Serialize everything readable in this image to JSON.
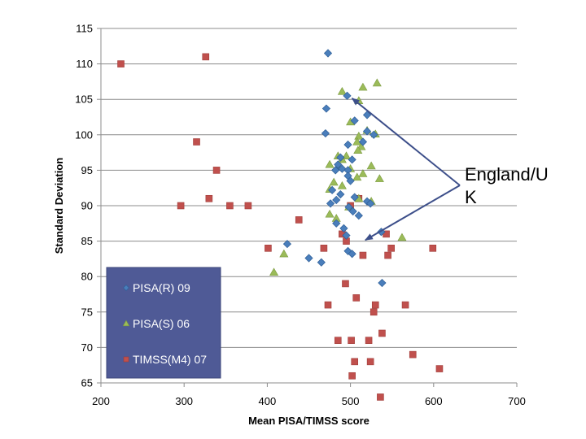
{
  "chart_data": {
    "type": "scatter",
    "title": "",
    "xlabel": "Mean PISA/TIMSS score",
    "ylabel": "Standard Deviation",
    "xlim": [
      200,
      700
    ],
    "ylim": [
      65,
      115
    ],
    "xticks": [
      200,
      300,
      400,
      500,
      600,
      700
    ],
    "yticks": [
      65,
      70,
      75,
      80,
      85,
      90,
      95,
      100,
      105,
      110,
      115
    ],
    "grid": "horizontal",
    "legend": "lower-left",
    "annotation": {
      "text": "England/U K",
      "line1": "England/U",
      "line2": "K",
      "targets": [
        [
          497,
          105.5
        ],
        [
          513,
          85.5
        ]
      ]
    },
    "series": [
      {
        "name": "PISA(R) 09",
        "marker": "diamond",
        "color": "#4a7ebb",
        "points": [
          [
            473,
            111.5
          ],
          [
            496,
            105.5
          ],
          [
            471,
            103.7
          ],
          [
            520,
            102.8
          ],
          [
            505,
            102.0
          ],
          [
            470,
            100.2
          ],
          [
            520,
            100.5
          ],
          [
            528,
            100.0
          ],
          [
            515,
            99.0
          ],
          [
            497,
            98.6
          ],
          [
            488,
            96.8
          ],
          [
            502,
            96.5
          ],
          [
            485,
            95.8
          ],
          [
            490,
            95.2
          ],
          [
            497,
            95.0
          ],
          [
            482,
            95.0
          ],
          [
            497,
            94.2
          ],
          [
            500,
            93.5
          ],
          [
            478,
            92.2
          ],
          [
            488,
            91.6
          ],
          [
            505,
            91.2
          ],
          [
            483,
            90.8
          ],
          [
            476,
            90.3
          ],
          [
            520,
            90.6
          ],
          [
            524,
            90.3
          ],
          [
            498,
            89.8
          ],
          [
            503,
            89.2
          ],
          [
            510,
            88.6
          ],
          [
            483,
            87.5
          ],
          [
            492,
            86.8
          ],
          [
            537,
            86.3
          ],
          [
            495,
            85.8
          ],
          [
            424,
            84.6
          ],
          [
            497,
            83.6
          ],
          [
            502,
            83.2
          ],
          [
            450,
            82.6
          ],
          [
            465,
            82.0
          ],
          [
            538,
            79.1
          ]
        ]
      },
      {
        "name": "PISA(S) 06",
        "marker": "triangle",
        "color": "#9bbb59",
        "points": [
          [
            532,
            107.3
          ],
          [
            515,
            106.7
          ],
          [
            490,
            106.1
          ],
          [
            510,
            104.8
          ],
          [
            500,
            101.8
          ],
          [
            520,
            100.6
          ],
          [
            530,
            100.1
          ],
          [
            510,
            99.8
          ],
          [
            508,
            99.0
          ],
          [
            513,
            98.3
          ],
          [
            509,
            97.8
          ],
          [
            485,
            97.0
          ],
          [
            495,
            97.0
          ],
          [
            490,
            96.5
          ],
          [
            475,
            95.8
          ],
          [
            485,
            95.5
          ],
          [
            525,
            95.6
          ],
          [
            500,
            95.2
          ],
          [
            515,
            94.5
          ],
          [
            508,
            94.0
          ],
          [
            535,
            93.8
          ],
          [
            480,
            93.3
          ],
          [
            490,
            92.8
          ],
          [
            475,
            92.3
          ],
          [
            510,
            91.0
          ],
          [
            525,
            90.6
          ],
          [
            498,
            89.8
          ],
          [
            475,
            88.8
          ],
          [
            483,
            88.2
          ],
          [
            562,
            85.5
          ],
          [
            420,
            83.2
          ],
          [
            408,
            80.6
          ]
        ]
      },
      {
        "name": "TIMSS(M4) 07",
        "marker": "square",
        "color": "#c0504d",
        "points": [
          [
            224,
            110.0
          ],
          [
            326,
            111.0
          ],
          [
            315,
            99.0
          ],
          [
            339,
            95.0
          ],
          [
            330,
            91.0
          ],
          [
            296,
            90.0
          ],
          [
            355,
            90.0
          ],
          [
            377,
            90.0
          ],
          [
            438,
            88.0
          ],
          [
            510,
            91.0
          ],
          [
            500,
            90.0
          ],
          [
            543,
            86.0
          ],
          [
            490,
            86.0
          ],
          [
            495,
            85.0
          ],
          [
            401,
            84.0
          ],
          [
            468,
            84.0
          ],
          [
            549,
            84.0
          ],
          [
            599,
            84.0
          ],
          [
            515,
            83.0
          ],
          [
            545,
            83.0
          ],
          [
            494,
            79.0
          ],
          [
            507,
            77.0
          ],
          [
            473,
            76.0
          ],
          [
            530,
            76.0
          ],
          [
            566,
            76.0
          ],
          [
            528,
            75.0
          ],
          [
            538,
            72.0
          ],
          [
            485,
            71.0
          ],
          [
            501,
            71.0
          ],
          [
            522,
            71.0
          ],
          [
            575,
            69.0
          ],
          [
            505,
            68.0
          ],
          [
            524,
            68.0
          ],
          [
            607,
            67.0
          ],
          [
            502,
            66.0
          ],
          [
            536,
            63.0
          ]
        ]
      }
    ]
  }
}
